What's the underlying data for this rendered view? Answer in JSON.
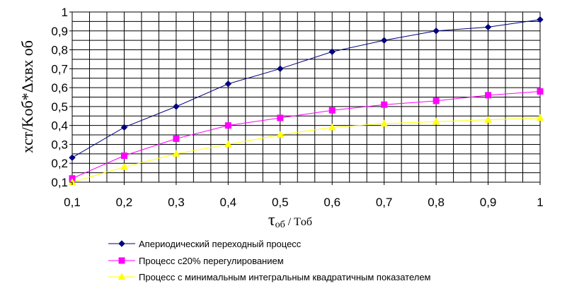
{
  "chart_data": {
    "type": "line",
    "title": "",
    "xlabel_main": "τ",
    "xlabel_sub": "об",
    "xlabel_rest": " / Tоб",
    "ylabel_text": "xст/Kоб*Δxвх об",
    "x": [
      0.1,
      0.2,
      0.3,
      0.4,
      0.5,
      0.6,
      0.7,
      0.8,
      0.9,
      1.0
    ],
    "x_ticks": [
      "0,1",
      "0,2",
      "0,3",
      "0,4",
      "0,5",
      "0,6",
      "0,7",
      "0,8",
      "0,9",
      "1"
    ],
    "y_ticks": [
      "0,1",
      "0,2",
      "0,3",
      "0,4",
      "0,5",
      "0,6",
      "0,7",
      "0,8",
      "0,9",
      "1"
    ],
    "xlim": [
      0.1,
      1.0
    ],
    "ylim": [
      0.1,
      1.0
    ],
    "grid": true,
    "legend_position": "bottom",
    "series": [
      {
        "name": "Апериодический переходный процесс",
        "color": "#000080",
        "marker": "diamond",
        "values": [
          0.23,
          0.39,
          0.5,
          0.62,
          0.7,
          0.79,
          0.85,
          0.9,
          0.92,
          0.96
        ]
      },
      {
        "name": "Процесс с20% перегулированием",
        "color": "#FF00FF",
        "marker": "square",
        "values": [
          0.12,
          0.24,
          0.33,
          0.4,
          0.44,
          0.48,
          0.51,
          0.53,
          0.56,
          0.58
        ]
      },
      {
        "name": "Процесс с минимальным интегральным квадратичным показателем",
        "color": "#FFFF00",
        "marker": "triangle",
        "values": [
          0.1,
          0.18,
          0.25,
          0.3,
          0.35,
          0.39,
          0.41,
          0.42,
          0.43,
          0.44
        ]
      }
    ]
  }
}
